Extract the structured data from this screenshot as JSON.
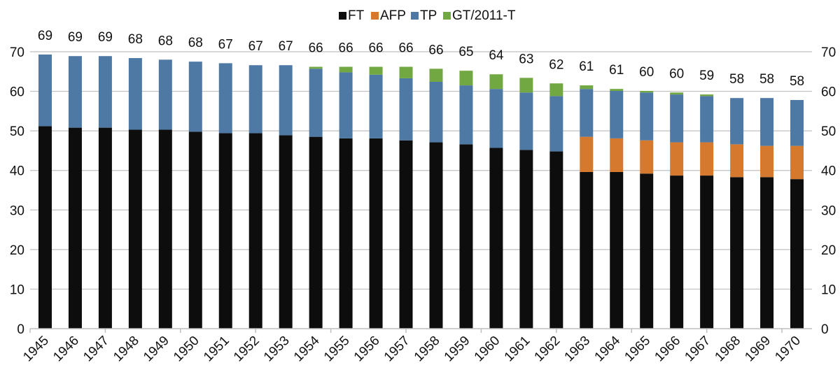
{
  "chart_data": {
    "type": "bar",
    "stacked": true,
    "title": "",
    "xlabel": "",
    "ylabel": "",
    "ylim": [
      0,
      70
    ],
    "yticks": [
      0,
      10,
      20,
      30,
      40,
      50,
      60,
      70
    ],
    "secondary_yaxis": true,
    "grid": true,
    "legend_position": "top-center",
    "categories": [
      "1945",
      "1946",
      "1947",
      "1948",
      "1949",
      "1950",
      "1951",
      "1952",
      "1953",
      "1954",
      "1955",
      "1956",
      "1957",
      "1958",
      "1959",
      "1960",
      "1961",
      "1962",
      "1963",
      "1964",
      "1965",
      "1966",
      "1967",
      "1968",
      "1969",
      "1970"
    ],
    "series": [
      {
        "name": "FT",
        "color": "#0d0d0d",
        "values": [
          51.2,
          50.8,
          50.8,
          50.3,
          50.3,
          49.8,
          49.4,
          49.4,
          48.9,
          48.5,
          48.1,
          48.1,
          47.6,
          47.1,
          46.6,
          45.7,
          45.2,
          44.8,
          39.6,
          39.6,
          39.2,
          38.7,
          38.7,
          38.3,
          38.3,
          37.8
        ]
      },
      {
        "name": "AFP",
        "color": "#d4792e",
        "values": [
          0,
          0,
          0,
          0,
          0,
          0,
          0,
          0,
          0,
          0,
          0,
          0,
          0,
          0,
          0,
          0,
          0,
          0,
          8.9,
          8.5,
          8.4,
          8.4,
          8.4,
          8.3,
          7.9,
          8.4
        ]
      },
      {
        "name": "TP",
        "color": "#4e79a5",
        "values": [
          18.1,
          18.1,
          18.1,
          18.1,
          17.7,
          17.7,
          17.7,
          17.2,
          17.7,
          17.2,
          16.7,
          16.1,
          15.7,
          15.3,
          14.9,
          14.9,
          14.5,
          14.0,
          12.1,
          12.0,
          12.1,
          12.1,
          11.7,
          11.7,
          12.1,
          11.6
        ]
      },
      {
        "name": "GT/2011-T",
        "color": "#72a841",
        "values": [
          0,
          0,
          0,
          0,
          0,
          0,
          0,
          0,
          0,
          0.5,
          1.4,
          2.0,
          2.9,
          3.3,
          3.7,
          3.7,
          3.7,
          3.2,
          0.9,
          0.5,
          0.4,
          0.5,
          0.4,
          0,
          0,
          0
        ]
      }
    ],
    "totals": [
      69,
      69,
      69,
      68,
      68,
      68,
      67,
      67,
      67,
      66,
      66,
      66,
      66,
      66,
      65,
      64,
      63,
      62,
      61,
      61,
      60,
      60,
      59,
      58,
      58,
      58
    ]
  }
}
